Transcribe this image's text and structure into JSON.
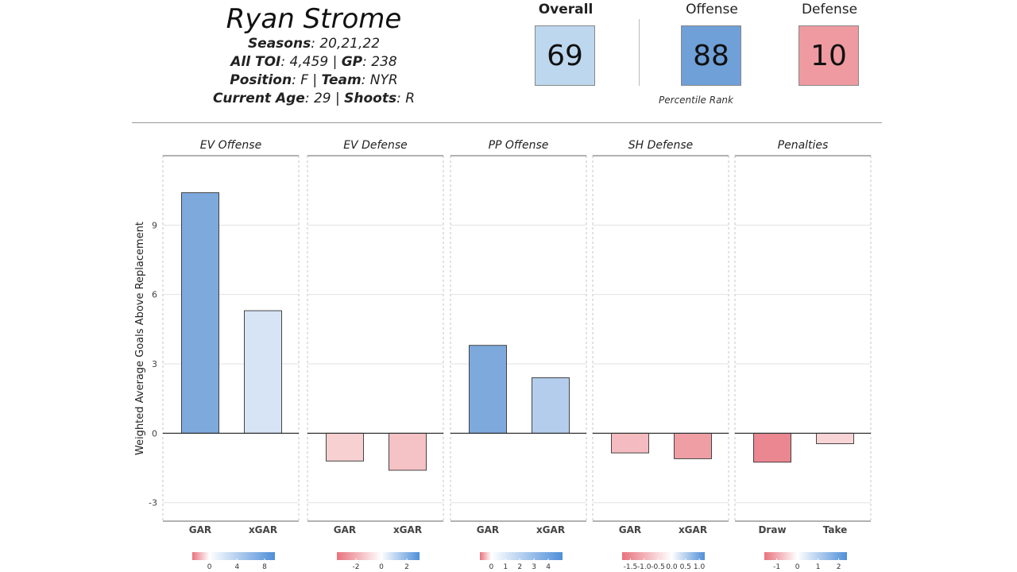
{
  "player": {
    "name": "Ryan Strome",
    "seasons_label": "Seasons",
    "seasons_value": ": 20,21,22",
    "toi_label": "All TOI",
    "toi_value": ": 4,459 | ",
    "gp_label": "GP",
    "gp_value": ": 238",
    "position_label": "Position",
    "position_value": ": F | ",
    "team_label": "Team",
    "team_value": ": NYR",
    "age_label": "Current Age",
    "age_value": ": 29 | ",
    "shoots_label": "Shoots",
    "shoots_value": ": R"
  },
  "ranks": {
    "overall_label": "Overall",
    "overall_value": "69",
    "offense_label": "Offense",
    "offense_value": "88",
    "defense_label": "Defense",
    "defense_value": "10",
    "caption": "Percentile Rank",
    "colors": {
      "overall": "#bdd7ee",
      "offense": "#6fa0d8",
      "defense": "#ee9aa0"
    }
  },
  "chart_data": {
    "type": "bar",
    "ylabel": "Weighted Average Goals Above Replacement",
    "ylim": [
      -3.8,
      12.0
    ],
    "yticks": [
      -3,
      0,
      3,
      6,
      9
    ],
    "grid": true,
    "panels": [
      {
        "title": "EV Offense",
        "categories": [
          "GAR",
          "xGAR"
        ],
        "values": [
          10.4,
          5.3
        ],
        "colors": [
          "#7ea9dc",
          "#d6e4f5"
        ],
        "legend": {
          "min": -2.5,
          "max": 9.5,
          "ticks": [
            "0",
            "4",
            "8"
          ],
          "tick_values": [
            0,
            4,
            8
          ]
        }
      },
      {
        "title": "EV Defense",
        "categories": [
          "GAR",
          "xGAR"
        ],
        "values": [
          -1.2,
          -1.6
        ],
        "colors": [
          "#f7d0d2",
          "#f5c2c5"
        ],
        "legend": {
          "min": -3.5,
          "max": 3.0,
          "ticks": [
            "-2",
            "0",
            "2"
          ],
          "tick_values": [
            -2,
            0,
            2
          ]
        }
      },
      {
        "title": "PP Offense",
        "categories": [
          "GAR",
          "xGAR"
        ],
        "values": [
          3.8,
          2.4
        ],
        "colors": [
          "#7ea9dc",
          "#b4cdec"
        ],
        "legend": {
          "min": -0.8,
          "max": 5.0,
          "ticks": [
            "0",
            "1",
            "2",
            "3",
            "4"
          ],
          "tick_values": [
            0,
            1,
            2,
            3,
            4
          ]
        }
      },
      {
        "title": "SH Defense",
        "categories": [
          "GAR",
          "xGAR"
        ],
        "values": [
          -0.85,
          -1.1
        ],
        "colors": [
          "#f4bcc0",
          "#ef9ea4"
        ],
        "legend": {
          "min": -1.8,
          "max": 1.2,
          "ticks": [
            "-1.5",
            "-1.0",
            "-0.5",
            "0.0",
            "0.5",
            "1.0"
          ],
          "tick_values": [
            -1.5,
            -1.0,
            -0.5,
            0.0,
            0.5,
            1.0
          ]
        }
      },
      {
        "title": "Penalties",
        "categories": [
          "Draw",
          "Take"
        ],
        "values": [
          -1.25,
          -0.45
        ],
        "colors": [
          "#ea8790",
          "#f8d4d6"
        ],
        "legend": {
          "min": -1.6,
          "max": 2.4,
          "ticks": [
            "-1",
            "0",
            "1",
            "2"
          ],
          "tick_values": [
            -1,
            0,
            1,
            2
          ]
        }
      }
    ]
  }
}
